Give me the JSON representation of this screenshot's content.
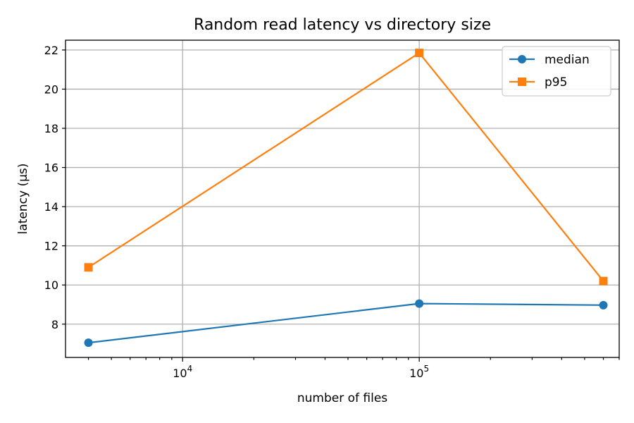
{
  "chart_data": {
    "type": "line",
    "title": "Random read latency vs directory size",
    "xlabel": "number of files",
    "ylabel": "latency (µs)",
    "xscale": "log",
    "xlim": [
      3200,
      700000
    ],
    "ylim": [
      6.3,
      22.5
    ],
    "x": [
      4000,
      100000,
      600000
    ],
    "yticks": [
      8,
      10,
      12,
      14,
      16,
      18,
      20,
      22
    ],
    "xticks": [
      {
        "value": 10000,
        "base": "10",
        "exp": "4"
      },
      {
        "value": 100000,
        "base": "10",
        "exp": "5"
      }
    ],
    "grid": true,
    "legend": "top-right",
    "series": [
      {
        "name": "median",
        "color": "#1f77b4",
        "marker": "circle",
        "values": [
          7.05,
          9.05,
          8.97
        ]
      },
      {
        "name": "p95",
        "color": "#ff7f0e",
        "marker": "square",
        "values": [
          10.9,
          21.85,
          10.2
        ]
      }
    ]
  }
}
